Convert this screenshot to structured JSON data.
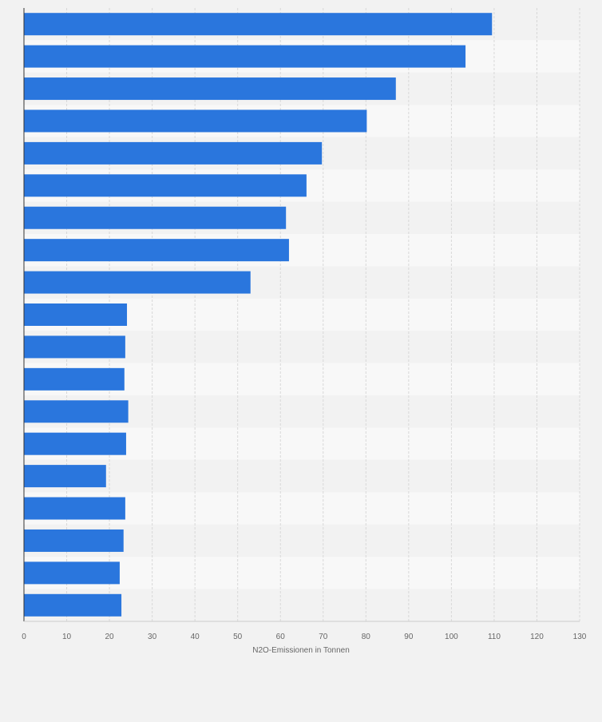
{
  "chart_data": {
    "type": "bar",
    "orientation": "horizontal",
    "categories": [
      "",
      "",
      "",
      "",
      "",
      "",
      "",
      "",
      "",
      "",
      "",
      "",
      "",
      "",
      "",
      "",
      "",
      "",
      ""
    ],
    "values": [
      109.5,
      103.3,
      87,
      80.2,
      69.7,
      66.1,
      61.3,
      62,
      53,
      24.1,
      23.7,
      23.5,
      24.4,
      23.9,
      19.2,
      23.7,
      23.3,
      22.4,
      22.8
    ],
    "xlabel": "N2O-Emissionen in Tonnen",
    "ylabel": "",
    "xlim": [
      0,
      130
    ],
    "xticks": [
      0,
      10,
      20,
      30,
      40,
      50,
      60,
      70,
      80,
      90,
      100,
      110,
      120,
      130
    ],
    "grid": true,
    "legend": "none"
  },
  "colors": {
    "bar": "#2a76dd",
    "background": "#f2f2f2",
    "band_light": "#f8f8f8",
    "band_dark": "#f2f2f2",
    "grid": "#d8d8d8",
    "axis": "#333333",
    "text": "#666666"
  }
}
